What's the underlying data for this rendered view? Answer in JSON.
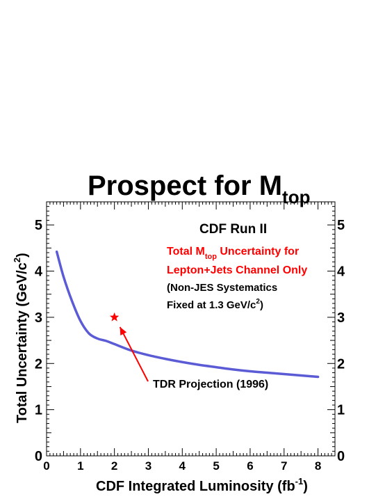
{
  "chart_data": {
    "type": "line",
    "title": {
      "main": "Prospect for M",
      "sub": "top"
    },
    "xlabel": {
      "main": "CDF Integrated Luminosity (fb",
      "sup": "-1",
      "end": ")"
    },
    "ylabel": {
      "main": "Total Uncertainty (GeV/c",
      "sup": "2",
      "end": ")"
    },
    "xlim": [
      0,
      8.5
    ],
    "ylim": [
      0,
      5.5
    ],
    "x_ticks": [
      0,
      1,
      2,
      3,
      4,
      5,
      6,
      7,
      8
    ],
    "y_ticks": [
      0,
      1,
      2,
      3,
      4,
      5
    ],
    "x_tick_labels": [
      "0",
      "1",
      "2",
      "3",
      "4",
      "5",
      "6",
      "7",
      "8"
    ],
    "y_tick_labels": [
      "0",
      "1",
      "2",
      "3",
      "4",
      "5"
    ],
    "series": [
      {
        "color": "#5b5bd6",
        "x": [
          0.3,
          0.5,
          0.75,
          1.0,
          1.25,
          1.5,
          1.75,
          2.0,
          2.5,
          3.0,
          3.5,
          4.0,
          4.5,
          5.0,
          5.5,
          6.0,
          6.5,
          7.0,
          7.5,
          8.0
        ],
        "y": [
          4.42,
          3.88,
          3.35,
          2.92,
          2.65,
          2.54,
          2.49,
          2.42,
          2.28,
          2.18,
          2.1,
          2.03,
          1.97,
          1.92,
          1.87,
          1.83,
          1.8,
          1.77,
          1.74,
          1.71
        ]
      }
    ],
    "points": [
      {
        "label": "TDR Projection (1996)",
        "x": 2.0,
        "y": 3.0,
        "color": "#ff0000",
        "marker": "star"
      }
    ],
    "annotations": {
      "run": "CDF Run II",
      "red_line1": {
        "a": "Total M",
        "sub": "top",
        "b": " Uncertainty for"
      },
      "red_line2": "Lepton+Jets Channel Only",
      "note_line1": "(Non-JES Systematics",
      "note_line2": {
        "a": "Fixed at 1.3 GeV/c",
        "sup": "2",
        "b": ")"
      },
      "red_color": "#ff0000"
    },
    "grid": false,
    "legend": "none"
  }
}
